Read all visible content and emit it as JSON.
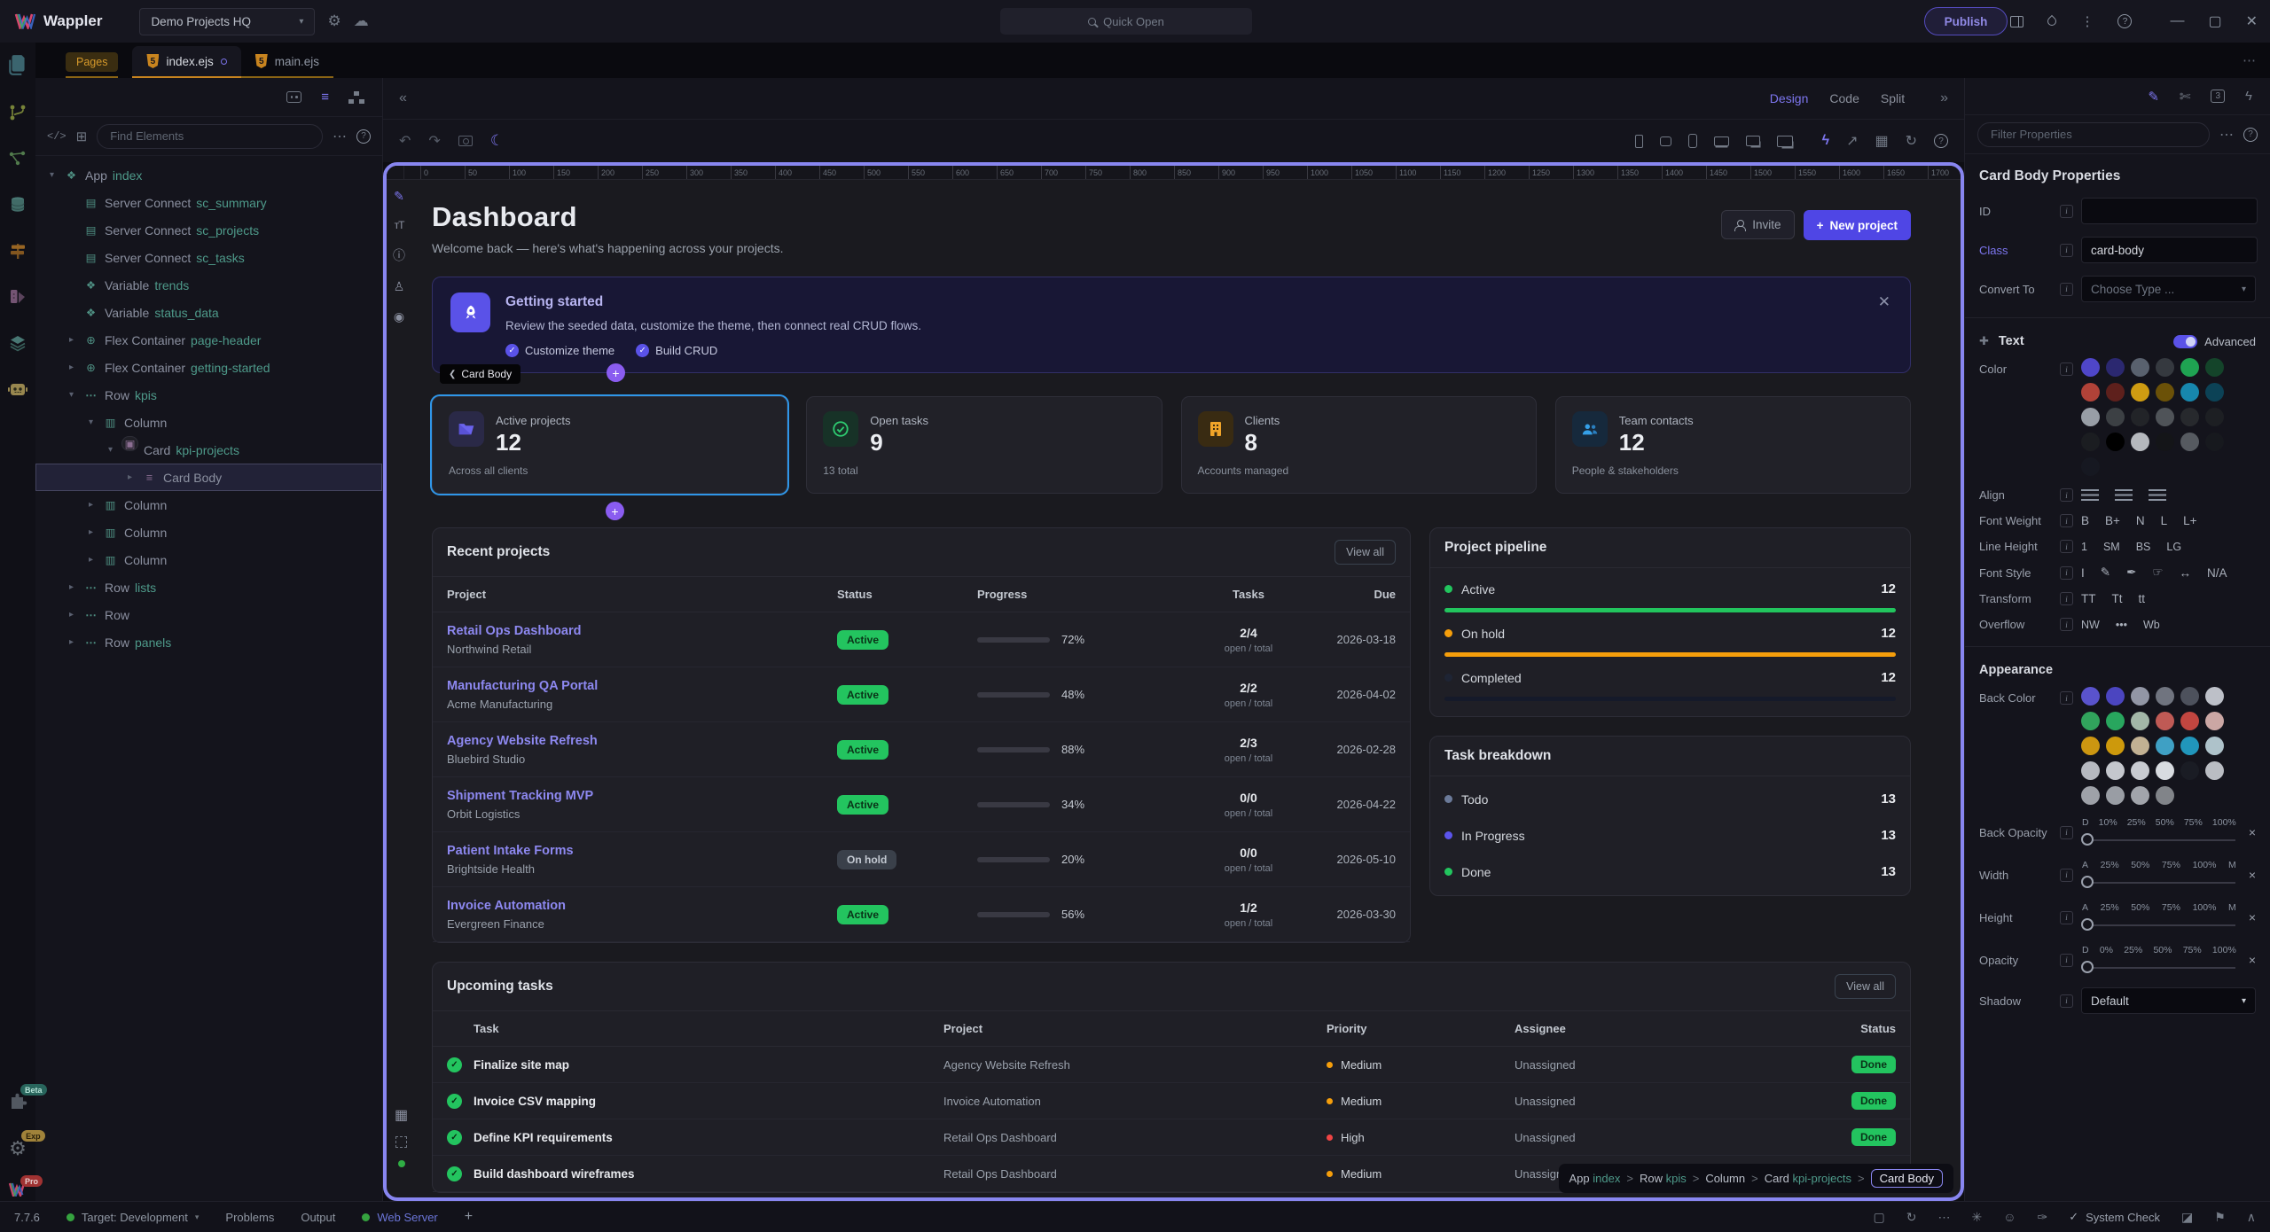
{
  "titlebar": {
    "app": "Wappler",
    "project": "Demo Projects HQ",
    "quick_open": "Quick Open",
    "publish": "Publish"
  },
  "tabs": {
    "pages": "Pages",
    "file1": "index.ejs",
    "file2": "main.ejs"
  },
  "left_header": {
    "find_placeholder": "Find Elements"
  },
  "tree": [
    {
      "pad": "12px",
      "ch": "▾",
      "icon": "box",
      "label": "App",
      "name": "index",
      "sel": ""
    },
    {
      "pad": "34px",
      "ch": "",
      "icon": "db",
      "label": "Server Connect",
      "name": "sc_summary",
      "sel": ""
    },
    {
      "pad": "34px",
      "ch": "",
      "icon": "db",
      "label": "Server Connect",
      "name": "sc_projects",
      "sel": ""
    },
    {
      "pad": "34px",
      "ch": "",
      "icon": "db",
      "label": "Server Connect",
      "name": "sc_tasks",
      "sel": ""
    },
    {
      "pad": "34px",
      "ch": "",
      "icon": "box",
      "label": "Variable",
      "name": "trends",
      "sel": ""
    },
    {
      "pad": "34px",
      "ch": "",
      "icon": "box",
      "label": "Variable",
      "name": "status_data",
      "sel": ""
    },
    {
      "pad": "34px",
      "ch": "▸",
      "icon": "flex",
      "label": "Flex Container",
      "name": "page-header",
      "sel": ""
    },
    {
      "pad": "34px",
      "ch": "▸",
      "icon": "flex",
      "label": "Flex Container",
      "name": "getting-started",
      "sel": ""
    },
    {
      "pad": "34px",
      "ch": "▾",
      "icon": "row",
      "label": "Row",
      "name": "kpis",
      "sel": ""
    },
    {
      "pad": "56px",
      "ch": "▾",
      "icon": "col",
      "label": "Column",
      "name": "",
      "sel": ""
    },
    {
      "pad": "78px",
      "ch": "▾",
      "icon": "card",
      "label": "Card",
      "name": "kpi-projects",
      "sel": ""
    },
    {
      "pad": "100px",
      "ch": "▸",
      "icon": "body",
      "label": "Card Body",
      "name": "",
      "sel": "selected"
    },
    {
      "pad": "56px",
      "ch": "▸",
      "icon": "col",
      "label": "Column",
      "name": "",
      "sel": ""
    },
    {
      "pad": "56px",
      "ch": "▸",
      "icon": "col",
      "label": "Column",
      "name": "",
      "sel": ""
    },
    {
      "pad": "56px",
      "ch": "▸",
      "icon": "col",
      "label": "Column",
      "name": "",
      "sel": ""
    },
    {
      "pad": "34px",
      "ch": "▸",
      "icon": "row",
      "label": "Row",
      "name": "lists",
      "sel": ""
    },
    {
      "pad": "34px",
      "ch": "▸",
      "icon": "row",
      "label": "Row",
      "name": "",
      "sel": ""
    },
    {
      "pad": "34px",
      "ch": "▸",
      "icon": "row",
      "label": "Row",
      "name": "panels",
      "sel": ""
    }
  ],
  "canvas": {
    "design": "Design",
    "code": "Code",
    "split": "Split",
    "ruler": [
      "0",
      "50",
      "100",
      "150",
      "200",
      "250",
      "300",
      "350",
      "400",
      "450",
      "500",
      "550",
      "600",
      "650",
      "700",
      "750",
      "800",
      "850",
      "900",
      "950",
      "1000",
      "1050",
      "1100",
      "1150",
      "1200",
      "1250",
      "1300",
      "1350",
      "1400",
      "1450",
      "1500",
      "1550",
      "1600",
      "1650",
      "1700"
    ]
  },
  "crumb": {
    "parts": [
      {
        "a": "App",
        "b": "index",
        "sep": ">"
      },
      {
        "a": "Row",
        "b": "kpis",
        "sep": ">"
      },
      {
        "a": "Column",
        "b": "",
        "sep": ">"
      },
      {
        "a": "Card",
        "b": "kpi-projects",
        "sep": ">"
      }
    ],
    "current": "Card Body"
  },
  "selection": {
    "chip": "Card Body",
    "plus": "+"
  },
  "dash": {
    "title": "Dashboard",
    "subtitle": "Welcome back — here's what's happening across your projects.",
    "invite": "Invite",
    "new_project": "New project",
    "banner": {
      "title": "Getting started",
      "body": "Review the seeded data, customize the theme, then connect real CRUD flows.",
      "check1": "Customize theme",
      "check2": "Build CRUD"
    },
    "kpis": [
      {
        "label": "Active projects",
        "value": "12",
        "sub": "Across all clients"
      },
      {
        "label": "Open tasks",
        "value": "9",
        "sub": "13 total"
      },
      {
        "label": "Clients",
        "value": "8",
        "sub": "Accounts managed"
      },
      {
        "label": "Team contacts",
        "value": "12",
        "sub": "People & stakeholders"
      }
    ],
    "recent": {
      "title": "Recent projects",
      "view_all": "View all",
      "headers": {
        "project": "Project",
        "status": "Status",
        "progress": "Progress",
        "tasks": "Tasks",
        "due": "Due"
      },
      "rows": [
        {
          "name": "Retail Ops Dashboard",
          "client": "Northwind Retail",
          "status": "Active",
          "scls": "active",
          "pct": "72%",
          "tasks": "2/4",
          "sub": "open / total",
          "due": "2026-03-18"
        },
        {
          "name": "Manufacturing QA Portal",
          "client": "Acme Manufacturing",
          "status": "Active",
          "scls": "active",
          "pct": "48%",
          "tasks": "2/2",
          "sub": "open / total",
          "due": "2026-04-02"
        },
        {
          "name": "Agency Website Refresh",
          "client": "Bluebird Studio",
          "status": "Active",
          "scls": "active",
          "pct": "88%",
          "tasks": "2/3",
          "sub": "open / total",
          "due": "2026-02-28"
        },
        {
          "name": "Shipment Tracking MVP",
          "client": "Orbit Logistics",
          "status": "Active",
          "scls": "active",
          "pct": "34%",
          "tasks": "0/0",
          "sub": "open / total",
          "due": "2026-04-22"
        },
        {
          "name": "Patient Intake Forms",
          "client": "Brightside Health",
          "status": "On hold",
          "scls": "onhold",
          "pct": "20%",
          "tasks": "0/0",
          "sub": "open / total",
          "due": "2026-05-10"
        },
        {
          "name": "Invoice Automation",
          "client": "Evergreen Finance",
          "status": "Active",
          "scls": "active",
          "pct": "56%",
          "tasks": "1/2",
          "sub": "open / total",
          "due": "2026-03-30"
        }
      ]
    },
    "pipeline": {
      "title": "Project pipeline",
      "rows": [
        {
          "label": "Active",
          "value": "12",
          "dot": "#22c55e",
          "bar": "#22c55e"
        },
        {
          "label": "On hold",
          "value": "12",
          "dot": "#f59e0b",
          "bar": "#f59e0b"
        },
        {
          "label": "Completed",
          "value": "12",
          "dot": "#1e2434",
          "bar": "#151a2a"
        }
      ]
    },
    "breakdown": {
      "title": "Task breakdown",
      "rows": [
        {
          "label": "Todo",
          "value": "13",
          "dot": "#6b7a99"
        },
        {
          "label": "In Progress",
          "value": "13",
          "dot": "#5b54ec"
        },
        {
          "label": "Done",
          "value": "13",
          "dot": "#22c55e"
        }
      ]
    },
    "upcoming": {
      "title": "Upcoming tasks",
      "view_all": "View all",
      "headers": {
        "task": "Task",
        "project": "Project",
        "priority": "Priority",
        "assignee": "Assignee",
        "status": "Status"
      },
      "rows": [
        {
          "task": "Finalize site map",
          "project": "Agency Website Refresh",
          "prio": "Medium",
          "pc": "#f59e0b",
          "assignee": "Unassigned",
          "status": "Done"
        },
        {
          "task": "Invoice CSV mapping",
          "project": "Invoice Automation",
          "prio": "Medium",
          "pc": "#f59e0b",
          "assignee": "Unassigned",
          "status": "Done"
        },
        {
          "task": "Define KPI requirements",
          "project": "Retail Ops Dashboard",
          "prio": "High",
          "pc": "#ef4444",
          "assignee": "Unassigned",
          "status": "Done"
        },
        {
          "task": "Build dashboard wireframes",
          "project": "Retail Ops Dashboard",
          "prio": "Medium",
          "pc": "#f59e0b",
          "assignee": "Unassigned",
          "status": "Done"
        }
      ]
    }
  },
  "props": {
    "filter_placeholder": "Filter Properties",
    "title": "Card Body Properties",
    "id_label": "ID",
    "class_label": "Class",
    "class_value": "card-body",
    "convert_label": "Convert To",
    "convert_placeholder": "Choose Type ...",
    "text_section": "Text",
    "advanced": "Advanced",
    "color_label": "Color",
    "text_colors": [
      "#4f46c8",
      "#2b2870",
      "#59616e",
      "#35393f",
      "#1fa352",
      "#14442a",
      "#b04238",
      "#5e201c",
      "#cf9c12",
      "#6b5108",
      "#1787ad",
      "#0c4256",
      "#989ea6",
      "#3c4044",
      "#222428",
      "#4f5358",
      "#27292d",
      "#1d1f23",
      "#1b1d21",
      "#000000",
      "#b5b8bd",
      "#141518",
      "#565a60",
      "#17191e",
      "#161821"
    ],
    "align_label": "Align",
    "font_weight_label": "Font Weight",
    "font_weights": [
      "B",
      "B+",
      "N",
      "L",
      "L+"
    ],
    "line_height_label": "Line Height",
    "line_heights": [
      "1",
      "SM",
      "BS",
      "LG"
    ],
    "font_style_label": "Font Style",
    "font_styles": [
      "I",
      "✎",
      "✒",
      "☞",
      "↔",
      "N/A"
    ],
    "transform_label": "Transform",
    "transforms": [
      "TT",
      "Tt",
      "tt"
    ],
    "overflow_label": "Overflow",
    "overflows": [
      "NW",
      "•••",
      "Wb"
    ],
    "appearance_section": "Appearance",
    "back_color_label": "Back Color",
    "back_colors": [
      "#5a53cc",
      "#4b45c0",
      "#9296a5",
      "#70747f",
      "#4d515c",
      "#bdc0c8",
      "#31a35c",
      "#28a65e",
      "#a3b7a8",
      "#bf5a55",
      "#c24640",
      "#cba7a4",
      "#cc9611",
      "#cd990c",
      "#c2b193",
      "#3fa0c4",
      "#2196bb",
      "#aec2ca",
      "#b6b9c0",
      "#c4c7cd",
      "#c8cbd1",
      "#d8dbe0",
      "#1a1c24",
      "#babdc3",
      "#9ea1a8",
      "#999da4",
      "#a1a4ab",
      "#818489"
    ],
    "sliders": [
      {
        "label": "Back Opacity",
        "scale": [
          "D",
          "10%",
          "25%",
          "50%",
          "75%",
          "100%"
        ]
      },
      {
        "label": "Width",
        "scale": [
          "A",
          "25%",
          "50%",
          "75%",
          "100%",
          "M"
        ]
      },
      {
        "label": "Height",
        "scale": [
          "A",
          "25%",
          "50%",
          "75%",
          "100%",
          "M"
        ]
      },
      {
        "label": "Opacity",
        "scale": [
          "D",
          "0%",
          "25%",
          "50%",
          "75%",
          "100%"
        ]
      }
    ],
    "shadow_label": "Shadow",
    "shadow_value": "Default",
    "system_check": "System Check"
  },
  "statusbar": {
    "version": "7.7.6",
    "target": "Target: Development",
    "problems": "Problems",
    "output": "Output",
    "web_server": "Web Server"
  },
  "rail_badges": {
    "beta": "Beta",
    "exp": "Exp",
    "pro": "Pro"
  }
}
